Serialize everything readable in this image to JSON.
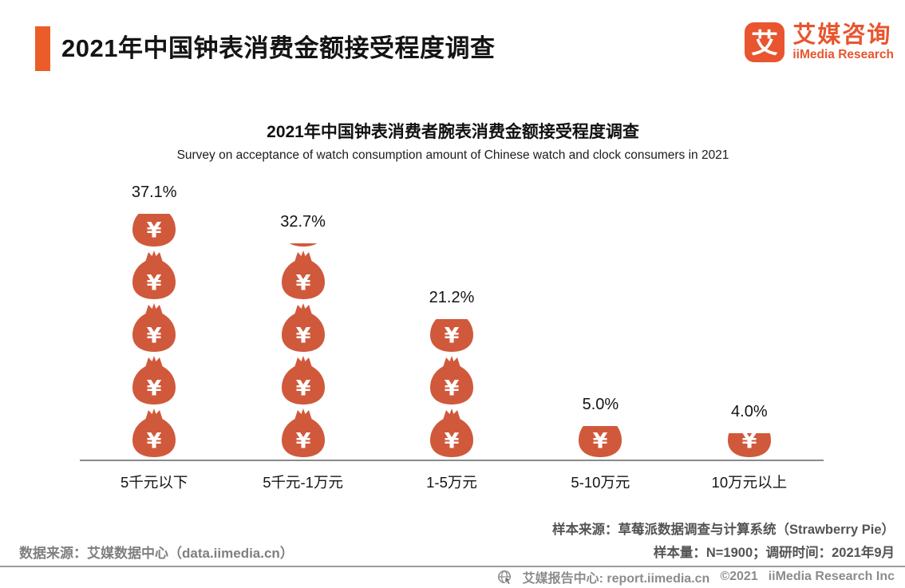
{
  "header": {
    "title": "2021年中国钟表消费金额接受程度调查",
    "logo": {
      "icon_glyph": "艾",
      "name_cn": "艾媒咨询",
      "name_en": "iiMedia Research"
    }
  },
  "chart_data": {
    "type": "bar",
    "variant": "pictograph",
    "icon": "money-bag-icon",
    "title": "2021年中国钟表消费者腕表消费金额接受程度调查",
    "subtitle": "Survey on acceptance of watch consumption amount of Chinese watch and clock consumers in 2021",
    "categories": [
      "5千元以下",
      "5千元-1万元",
      "1-5万元",
      "5-10万元",
      "10万元以上"
    ],
    "values": [
      37.1,
      32.7,
      21.2,
      5.0,
      4.0
    ],
    "value_labels": [
      "37.1%",
      "32.7%",
      "21.2%",
      "5.0%",
      "4.0%"
    ],
    "unit": "%",
    "ylim": [
      0,
      40
    ],
    "grid": false,
    "legend": "none",
    "icon_unit_percent": 8
  },
  "footer": {
    "data_source": "数据来源：艾媒数据中心（data.iimedia.cn）",
    "sample_source": "样本来源：草莓派数据调查与计算系统（Strawberry Pie）",
    "sample_info": "样本量：N=1900；调研时间：2021年9月"
  },
  "bottom_bar": {
    "report_center": "艾媒报告中心: report.iimedia.cn",
    "copyright": "©2021",
    "company": "iiMedia Research Inc"
  },
  "colors": {
    "brand_orange": "#e8552e",
    "accent_bar": "#ec5c28",
    "bag_fill": "#d0593c",
    "axis_line": "#8a8a8a",
    "footer_gray": "#7f7f7f",
    "footer_dark": "#545454",
    "bottom_bar_gray": "#8c8c8c"
  }
}
